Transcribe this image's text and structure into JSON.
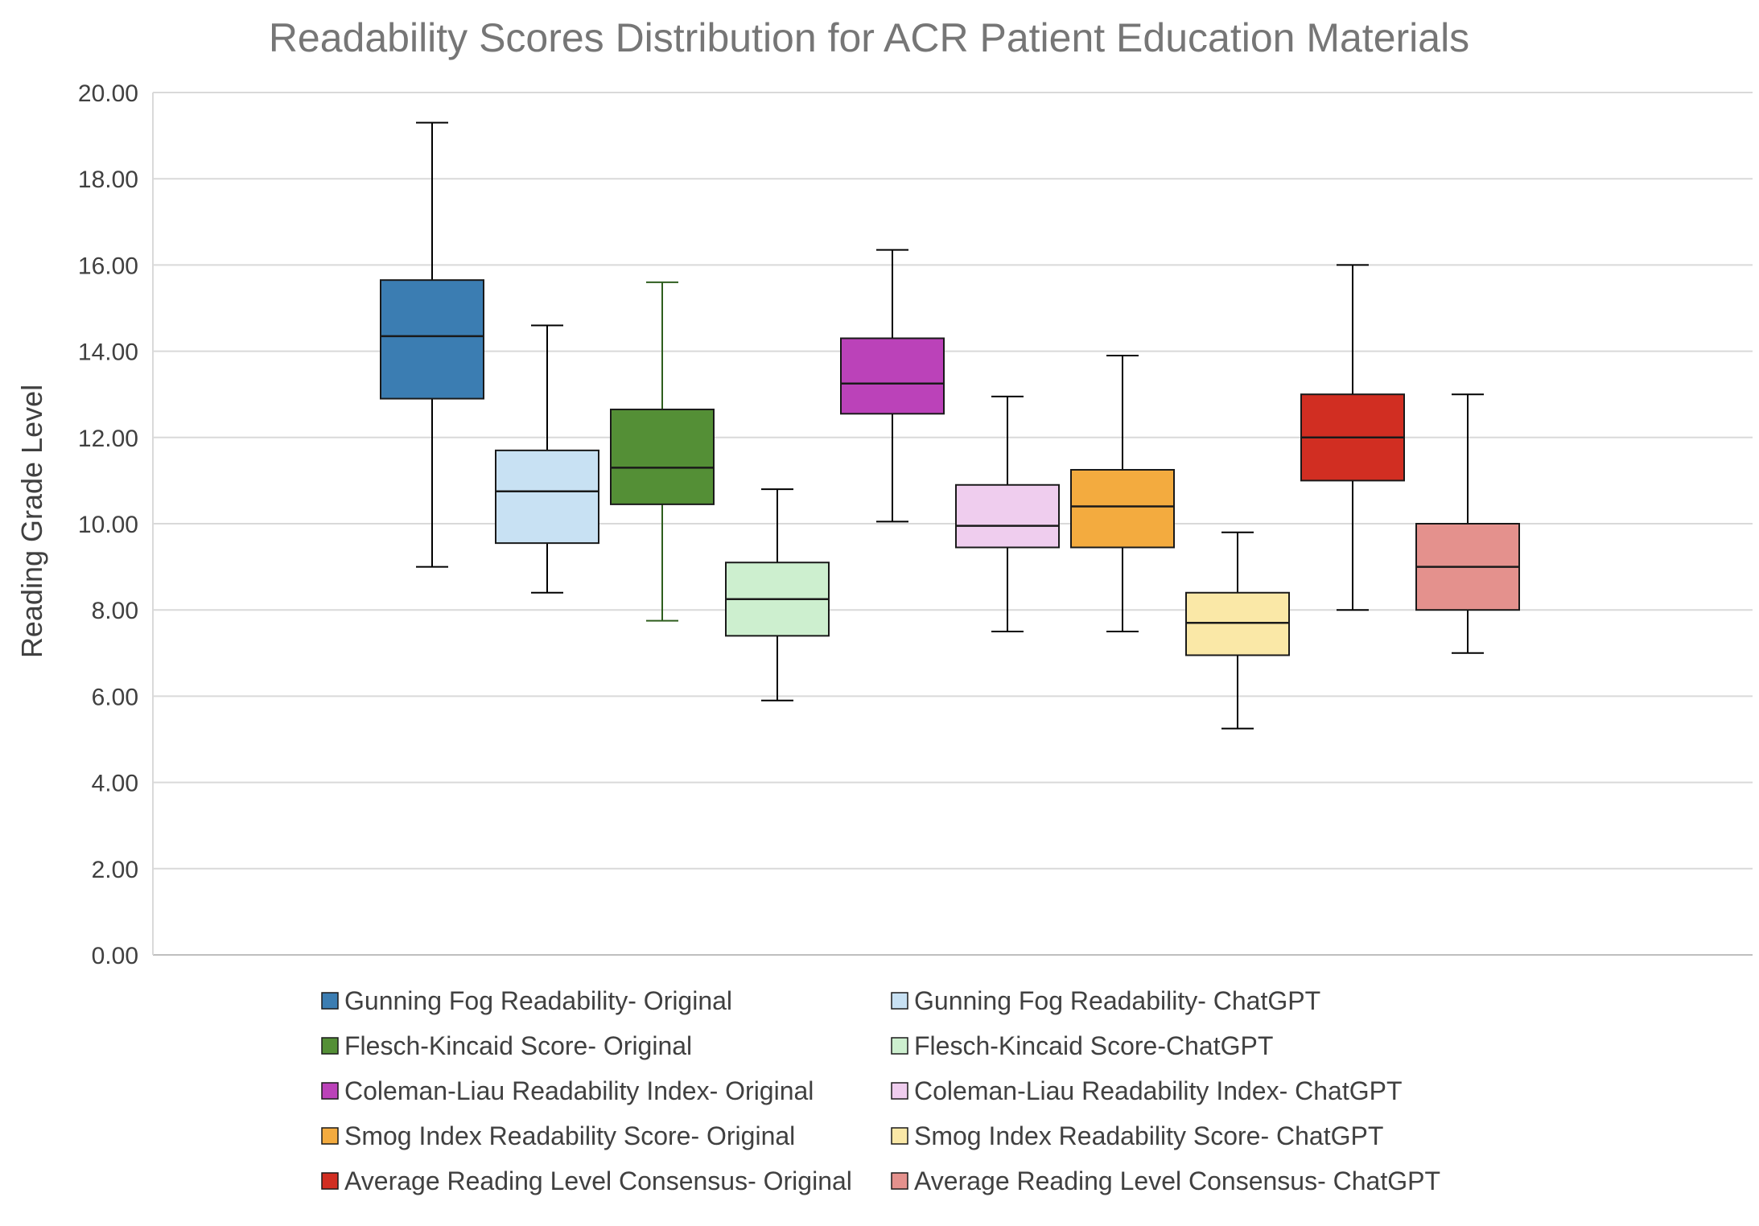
{
  "chart_data": {
    "type": "boxplot",
    "title": "Readability Scores Distribution for ACR Patient Education Materials",
    "xlabel": "",
    "ylabel": "Reading Grade Level",
    "ylim": [
      0,
      20
    ],
    "yticks": [
      "0.00",
      "2.00",
      "4.00",
      "6.00",
      "8.00",
      "10.00",
      "12.00",
      "14.00",
      "16.00",
      "18.00",
      "20.00"
    ],
    "grid": true,
    "legend_position": "bottom",
    "series": [
      {
        "name": "Gunning Fog Readability- Original",
        "color": "#3b7db2",
        "line_color": "#000000",
        "min": 9.0,
        "q1": 12.9,
        "median": 14.35,
        "q3": 15.65,
        "max": 19.3
      },
      {
        "name": "Gunning Fog Readability- ChatGPT",
        "color": "#c8e1f3",
        "line_color": "#000000",
        "min": 8.4,
        "q1": 9.55,
        "median": 10.75,
        "q3": 11.7,
        "max": 14.6
      },
      {
        "name": "Flesch-Kincaid Score- Original",
        "color": "#548f36",
        "line_color": "#2e5e1e",
        "min": 7.75,
        "q1": 10.45,
        "median": 11.3,
        "q3": 12.65,
        "max": 15.6
      },
      {
        "name": "Flesch-Kincaid Score-ChatGPT",
        "color": "#cdefcf",
        "line_color": "#000000",
        "min": 5.9,
        "q1": 7.4,
        "median": 8.25,
        "q3": 9.1,
        "max": 10.8
      },
      {
        "name": "Coleman-Liau Readability Index- Original",
        "color": "#bb42b9",
        "line_color": "#000000",
        "min": 10.05,
        "q1": 12.55,
        "median": 13.25,
        "q3": 14.3,
        "max": 16.35
      },
      {
        "name": "Coleman-Liau Readability Index- ChatGPT",
        "color": "#efcdee",
        "line_color": "#000000",
        "min": 7.5,
        "q1": 9.45,
        "median": 9.95,
        "q3": 10.9,
        "max": 12.95
      },
      {
        "name": "Smog Index Readability Score- Original",
        "color": "#f3ab3f",
        "line_color": "#000000",
        "min": 7.5,
        "q1": 9.45,
        "median": 10.4,
        "q3": 11.25,
        "max": 13.9
      },
      {
        "name": "Smog Index Readability Score- ChatGPT",
        "color": "#fae8a7",
        "line_color": "#000000",
        "min": 5.25,
        "q1": 6.95,
        "median": 7.7,
        "q3": 8.4,
        "max": 9.8
      },
      {
        "name": "Average Reading Level Consensus- Original",
        "color": "#d12e22",
        "line_color": "#000000",
        "min": 8.0,
        "q1": 11.0,
        "median": 12.0,
        "q3": 13.0,
        "max": 16.0
      },
      {
        "name": "Average Reading Level Consensus- ChatGPT",
        "color": "#e4918d",
        "line_color": "#000000",
        "min": 7.0,
        "q1": 8.0,
        "median": 9.0,
        "q3": 10.0,
        "max": 13.0
      }
    ]
  }
}
